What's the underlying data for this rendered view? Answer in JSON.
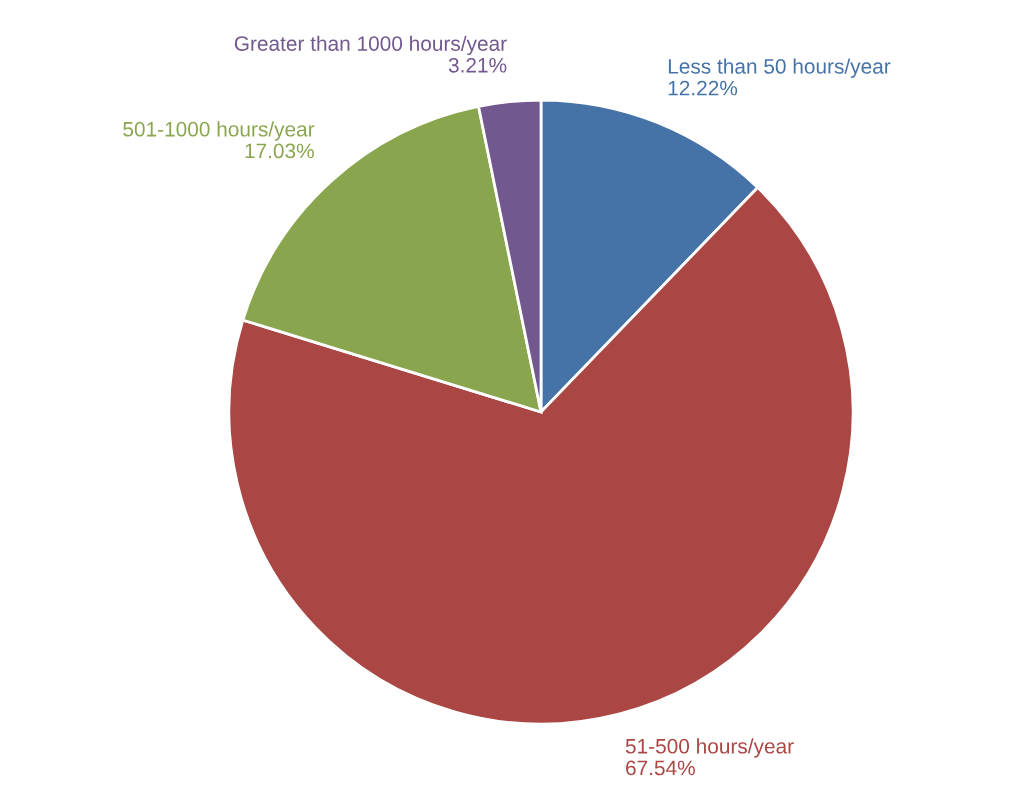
{
  "chart_data": {
    "type": "pie",
    "categories": [
      "Less than 50 hours/year",
      "51-500 hours/year",
      "501-1000 hours/year",
      "Greater than 1000 hours/year"
    ],
    "values": [
      12.22,
      67.54,
      17.03,
      3.21
    ],
    "colors": [
      "#4572a7",
      "#aa4643",
      "#89a54e",
      "#71588f"
    ],
    "value_labels": [
      "12.22%",
      "67.54%",
      "17.03%",
      "3.21%"
    ],
    "legend": false
  }
}
